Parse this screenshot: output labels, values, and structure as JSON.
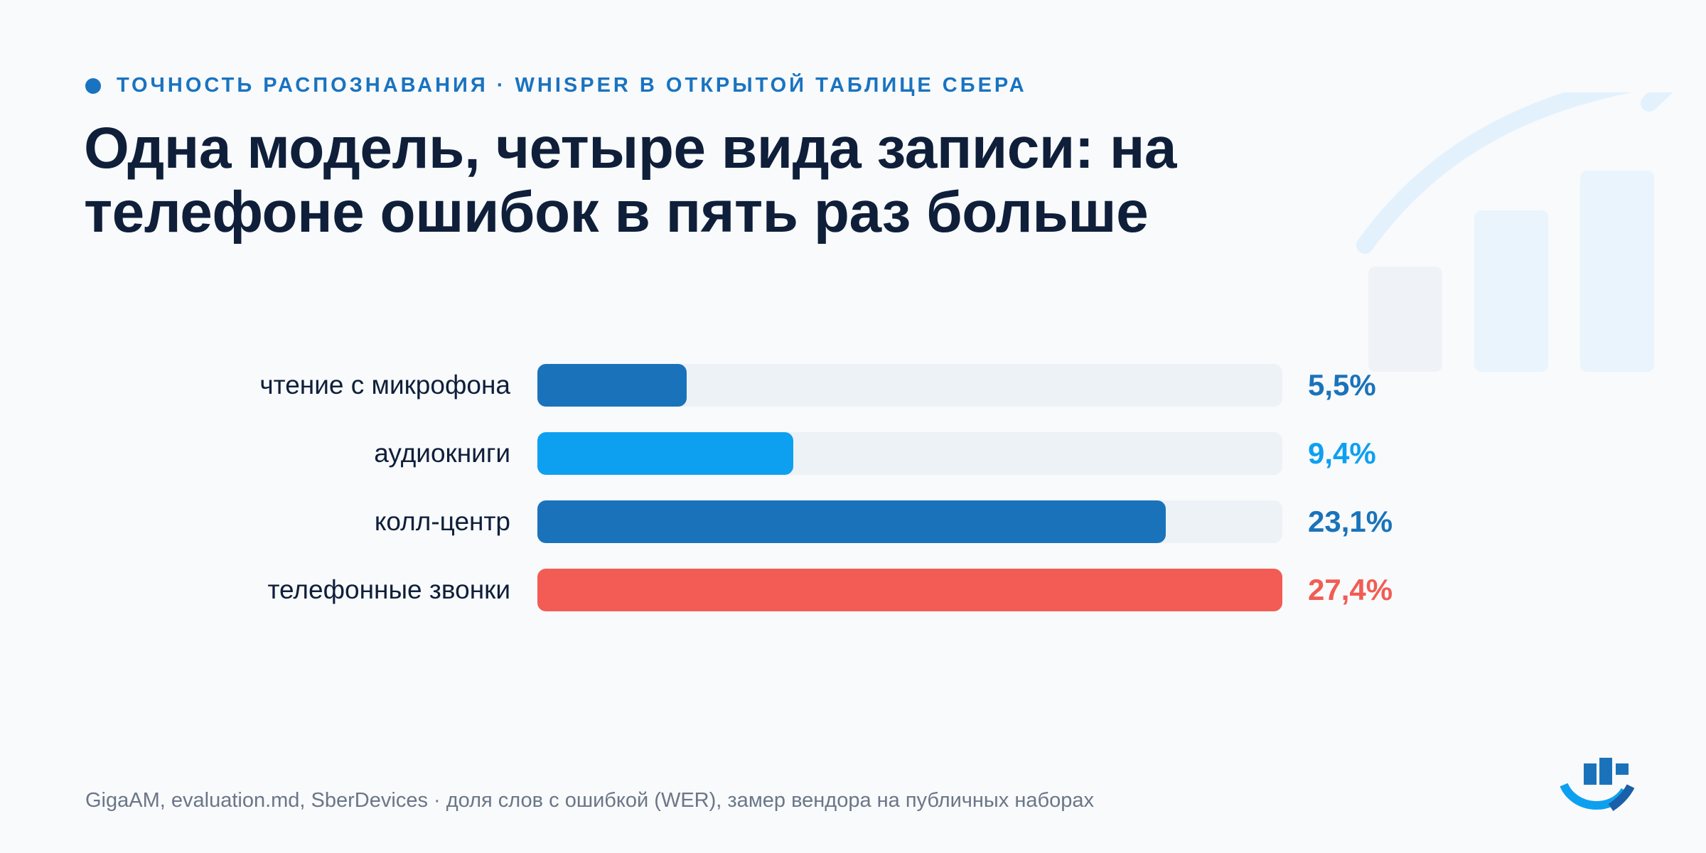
{
  "header": {
    "kicker": "ТОЧНОСТЬ РАСПОЗНАВАНИЯ · WHISPER В ОТКРЫТОЙ ТАБЛИЦЕ СБЕРА",
    "title": "Одна модель, четыре вида записи: на телефоне ошибок в пять раз больше"
  },
  "chart_data": {
    "type": "bar",
    "orientation": "horizontal",
    "categories": [
      "чтение с микрофона",
      "аудиокниги",
      "колл-центр",
      "телефонные звонки"
    ],
    "values": [
      5.5,
      9.4,
      23.1,
      27.4
    ],
    "value_labels": [
      "5,5%",
      "9,4%",
      "23,1%",
      "27,4%"
    ],
    "bar_colors": [
      "#1a73ba",
      "#0ea0f0",
      "#1a73ba",
      "#f25c54"
    ],
    "label_colors": [
      "#1a73ba",
      "#0ea0f0",
      "#1a73ba",
      "#f25c54"
    ],
    "track_color": "#edf2f7",
    "xlim": [
      0,
      27.4
    ],
    "grid": false,
    "legend": "none"
  },
  "footer": {
    "source": "GigaAM, evaluation.md, SberDevices · доля слов с ошибкой (WER), замер вендора на публичных наборах"
  },
  "icons": {
    "background_motif": "bar-chart-growth-icon",
    "logo": "logo-icon"
  },
  "colors": {
    "accent": "#1a73c0",
    "text": "#0f1f3a",
    "muted": "#6b7687",
    "background": "#f8fafc"
  }
}
